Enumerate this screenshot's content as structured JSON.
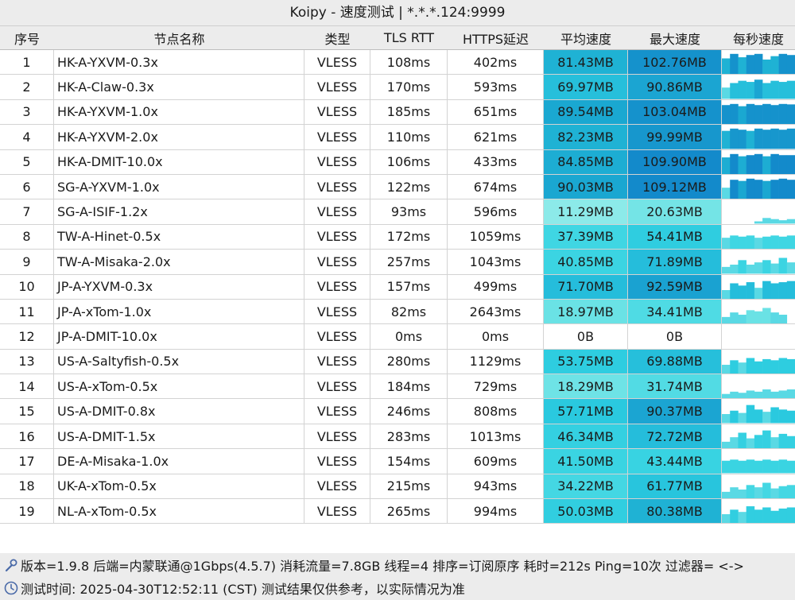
{
  "window": {
    "title": "Koipy - 速度测试 | *.*.*.124:9999"
  },
  "table": {
    "headers": {
      "index": "序号",
      "name": "节点名称",
      "type": "类型",
      "tls_rtt": "TLS RTT",
      "https_latency": "HTTPS延迟",
      "avg_speed": "平均速度",
      "max_speed": "最大速度",
      "per_second_speed": "每秒速度"
    },
    "rows": [
      {
        "index": "1",
        "name": "HK-A-YXVM-0.3x",
        "type": "VLESS",
        "tls_rtt": "108ms",
        "https": "402ms",
        "avg": "81.43MB",
        "max": "102.76MB",
        "avg_color": "#1fb2d4",
        "max_color": "#1592cc",
        "spark": [
          0.7,
          0.9,
          0.75,
          0.85,
          0.9,
          0.65,
          0.8,
          0.9,
          0.85
        ]
      },
      {
        "index": "2",
        "name": "HK-A-Claw-0.3x",
        "type": "VLESS",
        "tls_rtt": "170ms",
        "https": "593ms",
        "avg": "69.97MB",
        "max": "90.86MB",
        "avg_color": "#26bfdb",
        "max_color": "#1ba5d2",
        "spark": [
          0.5,
          0.7,
          0.8,
          0.75,
          0.85,
          0.7,
          0.8,
          0.75,
          0.8
        ]
      },
      {
        "index": "3",
        "name": "HK-A-YXVM-1.0x",
        "type": "VLESS",
        "tls_rtt": "185ms",
        "https": "651ms",
        "avg": "89.54MB",
        "max": "103.04MB",
        "avg_color": "#1aa8d1",
        "max_color": "#1592cc",
        "spark": [
          0.85,
          0.9,
          0.8,
          0.9,
          0.85,
          0.9,
          0.85,
          0.9,
          0.88
        ]
      },
      {
        "index": "4",
        "name": "HK-A-YXVM-2.0x",
        "type": "VLESS",
        "tls_rtt": "110ms",
        "https": "621ms",
        "avg": "82.23MB",
        "max": "99.99MB",
        "avg_color": "#1fb2d4",
        "max_color": "#1797cd",
        "spark": [
          0.8,
          0.9,
          0.85,
          0.8,
          0.9,
          0.85,
          0.9,
          0.85,
          0.9
        ]
      },
      {
        "index": "5",
        "name": "HK-A-DMIT-10.0x",
        "type": "VLESS",
        "tls_rtt": "106ms",
        "https": "433ms",
        "avg": "84.85MB",
        "max": "109.90MB",
        "avg_color": "#1dadd3",
        "max_color": "#138acb",
        "spark": [
          0.75,
          0.9,
          0.8,
          0.85,
          0.9,
          0.8,
          0.9,
          0.85,
          0.85
        ]
      },
      {
        "index": "6",
        "name": "SG-A-YXVM-1.0x",
        "type": "VLESS",
        "tls_rtt": "122ms",
        "https": "674ms",
        "avg": "90.03MB",
        "max": "109.12MB",
        "avg_color": "#1aa7d1",
        "max_color": "#138acb",
        "spark": [
          0.5,
          0.85,
          0.8,
          0.9,
          0.85,
          0.8,
          0.85,
          0.9,
          0.85
        ]
      },
      {
        "index": "7",
        "name": "SG-A-ISIF-1.2x",
        "type": "VLESS",
        "tls_rtt": "93ms",
        "https": "596ms",
        "avg": "11.29MB",
        "max": "20.63MB",
        "avg_color": "#8ceae9",
        "max_color": "#74e4e6",
        "spark": [
          0.0,
          0.0,
          0.0,
          0.0,
          0.1,
          0.25,
          0.2,
          0.15,
          0.2
        ]
      },
      {
        "index": "8",
        "name": "TW-A-Hinet-0.5x",
        "type": "VLESS",
        "tls_rtt": "172ms",
        "https": "1059ms",
        "avg": "37.39MB",
        "max": "54.41MB",
        "avg_color": "#3fd6e3",
        "max_color": "#2fcde0",
        "spark": [
          0.5,
          0.6,
          0.55,
          0.6,
          0.5,
          0.55,
          0.6,
          0.55,
          0.6
        ]
      },
      {
        "index": "9",
        "name": "TW-A-Misaka-2.0x",
        "type": "VLESS",
        "tls_rtt": "257ms",
        "https": "1043ms",
        "avg": "40.85MB",
        "max": "71.89MB",
        "avg_color": "#3bd4e2",
        "max_color": "#25bddb",
        "spark": [
          0.3,
          0.4,
          0.6,
          0.4,
          0.5,
          0.6,
          0.45,
          0.7,
          0.5
        ]
      },
      {
        "index": "10",
        "name": "JP-A-YXVM-0.3x",
        "type": "VLESS",
        "tls_rtt": "157ms",
        "https": "499ms",
        "avg": "71.70MB",
        "max": "92.59MB",
        "avg_color": "#25bddb",
        "max_color": "#1aa2d1",
        "spark": [
          0.4,
          0.7,
          0.6,
          0.75,
          0.5,
          0.8,
          0.7,
          0.75,
          0.8
        ]
      },
      {
        "index": "11",
        "name": "JP-A-xTom-1.0x",
        "type": "VLESS",
        "tls_rtt": "82ms",
        "https": "2643ms",
        "avg": "18.97MB",
        "max": "34.41MB",
        "avg_color": "#6ae2e5",
        "max_color": "#4fdbe4",
        "spark": [
          0.3,
          0.5,
          0.4,
          0.6,
          0.55,
          0.7,
          0.5,
          0.4,
          0.0
        ]
      },
      {
        "index": "12",
        "name": "JP-A-DMIT-10.0x",
        "type": "VLESS",
        "tls_rtt": "0ms",
        "https": "0ms",
        "avg": "0B",
        "max": "0B",
        "avg_color": "#ffffff",
        "max_color": "#ffffff",
        "spark": [
          0,
          0,
          0,
          0,
          0,
          0,
          0,
          0,
          0
        ]
      },
      {
        "index": "13",
        "name": "US-A-Saltyfish-0.5x",
        "type": "VLESS",
        "tls_rtt": "280ms",
        "https": "1129ms",
        "avg": "53.75MB",
        "max": "69.88MB",
        "avg_color": "#2ecde0",
        "max_color": "#26bfdb",
        "spark": [
          0.4,
          0.6,
          0.5,
          0.7,
          0.55,
          0.65,
          0.6,
          0.7,
          0.65
        ]
      },
      {
        "index": "14",
        "name": "US-A-xTom-0.5x",
        "type": "VLESS",
        "tls_rtt": "184ms",
        "https": "729ms",
        "avg": "18.29MB",
        "max": "31.74MB",
        "avg_color": "#6ee3e6",
        "max_color": "#52dbe4",
        "spark": [
          0.2,
          0.3,
          0.25,
          0.35,
          0.3,
          0.4,
          0.3,
          0.35,
          0.4
        ]
      },
      {
        "index": "15",
        "name": "US-A-DMIT-0.8x",
        "type": "VLESS",
        "tls_rtt": "246ms",
        "https": "808ms",
        "avg": "57.71MB",
        "max": "90.37MB",
        "avg_color": "#2ac9df",
        "max_color": "#1ba5d2",
        "spark": [
          0.4,
          0.55,
          0.45,
          0.8,
          0.6,
          0.5,
          0.7,
          0.6,
          0.55
        ]
      },
      {
        "index": "16",
        "name": "US-A-DMIT-1.5x",
        "type": "VLESS",
        "tls_rtt": "283ms",
        "https": "1013ms",
        "avg": "46.34MB",
        "max": "72.72MB",
        "avg_color": "#34d0e1",
        "max_color": "#25bddb",
        "spark": [
          0.3,
          0.5,
          0.7,
          0.45,
          0.6,
          0.8,
          0.5,
          0.65,
          0.55
        ]
      },
      {
        "index": "17",
        "name": "DE-A-Misaka-1.0x",
        "type": "VLESS",
        "tls_rtt": "154ms",
        "https": "609ms",
        "avg": "41.50MB",
        "max": "43.44MB",
        "avg_color": "#3ad4e2",
        "max_color": "#38d3e2",
        "spark": [
          0.55,
          0.6,
          0.55,
          0.6,
          0.55,
          0.6,
          0.55,
          0.6,
          0.55
        ]
      },
      {
        "index": "18",
        "name": "UK-A-xTom-0.5x",
        "type": "VLESS",
        "tls_rtt": "215ms",
        "https": "943ms",
        "avg": "34.22MB",
        "max": "61.77MB",
        "avg_color": "#44d7e3",
        "max_color": "#28c5dd",
        "spark": [
          0.3,
          0.5,
          0.4,
          0.6,
          0.5,
          0.7,
          0.45,
          0.55,
          0.6
        ]
      },
      {
        "index": "19",
        "name": "NL-A-xTom-0.5x",
        "type": "VLESS",
        "tls_rtt": "265ms",
        "https": "994ms",
        "avg": "50.03MB",
        "max": "80.38MB",
        "avg_color": "#31cee0",
        "max_color": "#1fb2d4",
        "spark": [
          0.4,
          0.6,
          0.5,
          0.75,
          0.6,
          0.7,
          0.55,
          0.65,
          0.7
        ]
      }
    ]
  },
  "footer": {
    "line1": "版本=1.9.8  后端=内蒙联通@1Gbps(4.5.7) 消耗流量=7.8GB  线程=4  排序=订阅原序  耗时=212s  Ping=10次  过滤器= <->",
    "line2": "测试时间: 2025-04-30T12:52:11 (CST)  测试结果仅供参考，以实际情况为准"
  },
  "icons": {
    "version": "wrench-icon",
    "time": "clock-icon"
  }
}
